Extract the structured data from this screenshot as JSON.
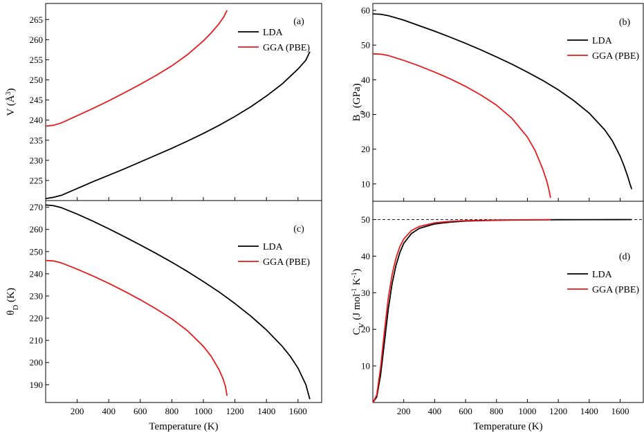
{
  "figure": {
    "xlabel_c": "Temperature (K)",
    "xlabel_d": "Temperature (K)"
  },
  "chart_data": [
    {
      "panel": "(a)",
      "type": "line",
      "xlabel": "",
      "ylabel": "V (Å³)",
      "ylabel_parts": {
        "main": "V (Å",
        "sup": "3",
        "tail": ")"
      },
      "xlim": [
        0,
        1750
      ],
      "ylim": [
        220,
        269
      ],
      "yticks": [
        225,
        230,
        235,
        240,
        245,
        250,
        255,
        260,
        265
      ],
      "xticks": [],
      "grid": false,
      "legend_position": "top-right",
      "series": [
        {
          "name": "LDA",
          "color": "#000000",
          "x": [
            0,
            50,
            100,
            200,
            300,
            400,
            500,
            600,
            700,
            800,
            900,
            1000,
            1100,
            1200,
            1300,
            1400,
            1500,
            1600,
            1650,
            1675
          ],
          "y": [
            220.5,
            220.8,
            221.3,
            223.0,
            224.7,
            226.3,
            227.9,
            229.6,
            231.3,
            233.0,
            234.8,
            236.7,
            238.7,
            240.9,
            243.3,
            246.0,
            249.0,
            252.7,
            254.9,
            257.0
          ]
        },
        {
          "name": "GGA (PBE)",
          "color": "#e8191b",
          "x": [
            0,
            50,
            100,
            200,
            300,
            400,
            500,
            600,
            700,
            800,
            900,
            1000,
            1050,
            1100,
            1130,
            1150
          ],
          "y": [
            238.5,
            238.7,
            239.3,
            241.1,
            242.9,
            244.8,
            246.8,
            248.9,
            251.1,
            253.5,
            256.3,
            259.7,
            261.7,
            264.0,
            265.7,
            267.3
          ]
        }
      ]
    },
    {
      "panel": "(b)",
      "type": "line",
      "xlabel": "",
      "ylabel": "Bo (GPa)",
      "ylabel_parts": {
        "main": "B",
        "sub": "o",
        "tail": " (GPa)"
      },
      "xlim": [
        0,
        1750
      ],
      "ylim": [
        5,
        62
      ],
      "yticks": [
        10,
        20,
        30,
        40,
        50,
        60
      ],
      "xticks": [],
      "grid": false,
      "legend_position": "top-right",
      "series": [
        {
          "name": "LDA",
          "color": "#000000",
          "x": [
            0,
            50,
            100,
            200,
            300,
            400,
            500,
            600,
            700,
            800,
            900,
            1000,
            1100,
            1200,
            1300,
            1400,
            1500,
            1550,
            1600,
            1625,
            1650,
            1665,
            1675
          ],
          "y": [
            59.0,
            58.9,
            58.5,
            57.2,
            55.6,
            54.0,
            52.3,
            50.5,
            48.6,
            46.6,
            44.5,
            42.2,
            39.8,
            37.1,
            34.0,
            30.4,
            25.6,
            22.4,
            18.0,
            15.2,
            12.0,
            9.8,
            8.5
          ]
        },
        {
          "name": "GGA (PBE)",
          "color": "#e8191b",
          "x": [
            0,
            50,
            100,
            200,
            300,
            400,
            500,
            600,
            700,
            800,
            900,
            1000,
            1050,
            1100,
            1125,
            1140,
            1150
          ],
          "y": [
            47.5,
            47.4,
            47.0,
            45.6,
            44.0,
            42.2,
            40.3,
            38.1,
            35.6,
            32.7,
            28.9,
            23.5,
            19.6,
            14.2,
            10.8,
            8.2,
            6.0
          ]
        }
      ]
    },
    {
      "panel": "(c)",
      "type": "line",
      "xlabel": "Temperature (K)",
      "ylabel": "θD (K)",
      "ylabel_parts": {
        "main": "θ",
        "sub": "D",
        "tail": " (K)"
      },
      "xlim": [
        0,
        1750
      ],
      "ylim": [
        182,
        273
      ],
      "yticks": [
        190,
        200,
        210,
        220,
        230,
        240,
        250,
        260,
        270
      ],
      "xticks": [
        200,
        400,
        600,
        800,
        1000,
        1200,
        1400,
        1600
      ],
      "grid": false,
      "legend_position": "top-right",
      "series": [
        {
          "name": "LDA",
          "color": "#000000",
          "x": [
            0,
            50,
            100,
            200,
            300,
            400,
            500,
            600,
            700,
            800,
            900,
            1000,
            1100,
            1200,
            1300,
            1400,
            1500,
            1550,
            1600,
            1650,
            1675
          ],
          "y": [
            271.0,
            270.7,
            269.8,
            266.9,
            263.7,
            260.3,
            256.7,
            253.0,
            249.2,
            245.2,
            241.0,
            236.5,
            231.8,
            226.6,
            221.0,
            214.7,
            207.3,
            202.9,
            197.5,
            190.0,
            183.5
          ]
        },
        {
          "name": "GGA (PBE)",
          "color": "#e8191b",
          "x": [
            0,
            50,
            100,
            200,
            300,
            400,
            500,
            600,
            700,
            800,
            900,
            1000,
            1050,
            1100,
            1125,
            1140,
            1150
          ],
          "y": [
            246.0,
            245.8,
            244.9,
            242.1,
            239.0,
            235.7,
            232.1,
            228.3,
            224.2,
            219.7,
            214.3,
            207.3,
            202.8,
            196.7,
            192.6,
            189.3,
            185.0
          ]
        }
      ]
    },
    {
      "panel": "(d)",
      "type": "line",
      "xlabel": "Temperature (K)",
      "ylabel": "CV (J mol⁻¹ K⁻¹)",
      "ylabel_parts": {
        "main": "C",
        "sub": "V",
        "mid": " (J mol",
        "sup1": "-1",
        "mid2": " K",
        "sup2": "-1",
        "tail": ")"
      },
      "xlim": [
        0,
        1750
      ],
      "ylim": [
        0,
        55
      ],
      "yticks": [
        10,
        20,
        30,
        40,
        50
      ],
      "xticks": [
        200,
        400,
        600,
        800,
        1000,
        1200,
        1400,
        1600
      ],
      "grid": false,
      "legend_position": "right",
      "reference_line": {
        "y": 50,
        "style": "dashed"
      },
      "series": [
        {
          "name": "LDA",
          "color": "#000000",
          "x": [
            0,
            25,
            50,
            75,
            100,
            125,
            150,
            175,
            200,
            250,
            300,
            400,
            500,
            600,
            800,
            1000,
            1200,
            1400,
            1675
          ],
          "y": [
            0.0,
            1.5,
            7.5,
            16.5,
            25.5,
            32.5,
            37.5,
            41.0,
            43.5,
            46.2,
            47.6,
            48.8,
            49.3,
            49.6,
            49.8,
            49.9,
            49.95,
            49.97,
            50.0
          ]
        },
        {
          "name": "GGA (PBE)",
          "color": "#e8191b",
          "x": [
            0,
            25,
            50,
            75,
            100,
            125,
            150,
            175,
            200,
            250,
            300,
            400,
            500,
            600,
            800,
            1000,
            1150
          ],
          "y": [
            0.0,
            2.0,
            9.5,
            19.5,
            28.5,
            35.0,
            39.5,
            42.6,
            44.7,
            47.0,
            48.1,
            49.1,
            49.5,
            49.7,
            49.85,
            49.93,
            49.96
          ]
        }
      ]
    }
  ]
}
